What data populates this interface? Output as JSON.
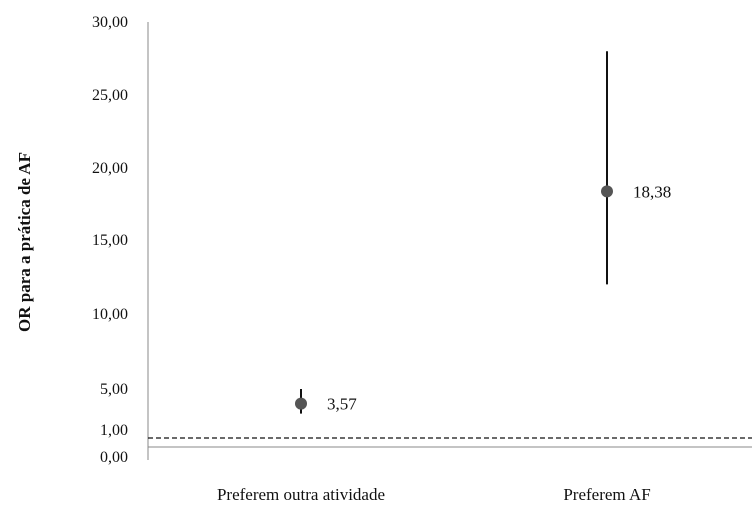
{
  "chart_data": {
    "type": "scatter",
    "ylabel": "OR para a prática de AF",
    "ylim": [
      0,
      30
    ],
    "y_ticks": [
      {
        "value": 0,
        "label": "0,00"
      },
      {
        "value": 1,
        "label": "1,00"
      },
      {
        "value": 5,
        "label": "5,00"
      },
      {
        "value": 10,
        "label": "10,00"
      },
      {
        "value": 15,
        "label": "15,00"
      },
      {
        "value": 20,
        "label": "20,00"
      },
      {
        "value": 25,
        "label": "25,00"
      },
      {
        "value": 30,
        "label": "30,00"
      }
    ],
    "categories": [
      "Preferem outra atividade",
      "Preferem AF"
    ],
    "points": [
      {
        "category": "Preferem outra atividade",
        "value": 3.57,
        "ci_low": 2.6,
        "ci_high": 5.0,
        "label": "3,57"
      },
      {
        "category": "Preferem AF",
        "value": 18.38,
        "ci_low": 12.0,
        "ci_high": 28.0,
        "label": "18,38"
      }
    ],
    "reference_line": {
      "value": 1,
      "style": "dashed"
    },
    "grid": false,
    "colors": {
      "marker": "#555555",
      "whisker": "#111111",
      "axis": "#888888",
      "reference": "#111111"
    }
  }
}
